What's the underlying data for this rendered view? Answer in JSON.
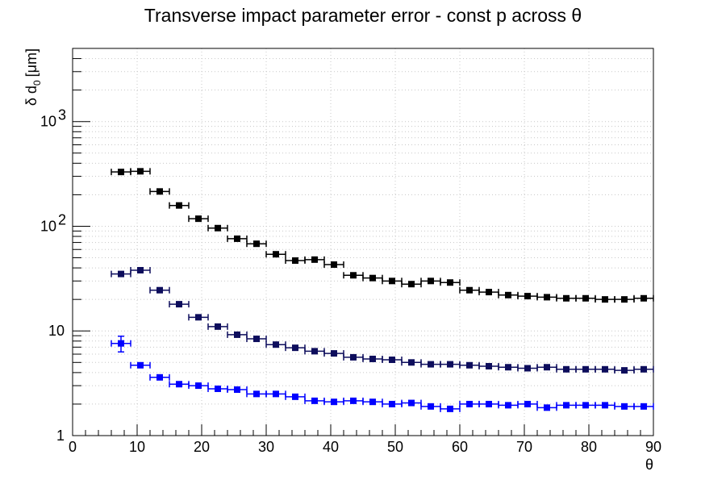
{
  "chart_data": {
    "type": "scatter",
    "title": "Transverse impact parameter error - const p across θ",
    "xlabel": "θ",
    "ylabel_main": "δ d",
    "ylabel_sub": "0",
    "ylabel_unit": "[μm]",
    "xlim": [
      0,
      90
    ],
    "ylim": [
      1,
      5000
    ],
    "yscale": "log",
    "grid": true,
    "x_ticks": [
      "0",
      "10",
      "20",
      "30",
      "40",
      "50",
      "60",
      "70",
      "80",
      "90"
    ],
    "y_ticks": [
      {
        "value": 1,
        "label": "1"
      },
      {
        "value": 10,
        "label": "10"
      },
      {
        "value": 100,
        "label": "10",
        "exp": "2"
      },
      {
        "value": 1000,
        "label": "10",
        "exp": "3"
      }
    ],
    "bin_halfwidth": 1.5,
    "series": [
      {
        "color": "#000000",
        "x": [
          7.5,
          10.5,
          13.5,
          16.5,
          19.5,
          22.5,
          25.5,
          28.5,
          31.5,
          34.5,
          37.5,
          40.5,
          43.5,
          46.5,
          49.5,
          52.5,
          55.5,
          58.5,
          61.5,
          64.5,
          67.5,
          70.5,
          73.5,
          76.5,
          79.5,
          82.5,
          85.5,
          88.5
        ],
        "y": [
          330,
          335,
          215,
          158,
          118,
          96,
          76,
          68,
          54,
          47,
          48,
          43,
          34,
          32,
          30,
          28,
          30,
          29,
          24.5,
          23.5,
          22,
          21.5,
          21,
          20.5,
          20.5,
          20,
          20,
          20.5
        ]
      },
      {
        "color": "#0d0d5c",
        "x": [
          7.5,
          10.5,
          13.5,
          16.5,
          19.5,
          22.5,
          25.5,
          28.5,
          31.5,
          34.5,
          37.5,
          40.5,
          43.5,
          46.5,
          49.5,
          52.5,
          55.5,
          58.5,
          61.5,
          64.5,
          67.5,
          70.5,
          73.5,
          76.5,
          79.5,
          82.5,
          85.5,
          88.5
        ],
        "y": [
          35,
          38,
          24.5,
          18,
          13.5,
          11,
          9.2,
          8.4,
          7.4,
          6.9,
          6.4,
          6.1,
          5.6,
          5.4,
          5.3,
          5.0,
          4.8,
          4.8,
          4.7,
          4.6,
          4.5,
          4.4,
          4.5,
          4.3,
          4.3,
          4.3,
          4.2,
          4.3
        ]
      },
      {
        "color": "#0000ff",
        "x": [
          7.5,
          10.5,
          13.5,
          16.5,
          19.5,
          22.5,
          25.5,
          28.5,
          31.5,
          34.5,
          37.5,
          40.5,
          43.5,
          46.5,
          49.5,
          52.5,
          55.5,
          58.5,
          61.5,
          64.5,
          67.5,
          70.5,
          73.5,
          76.5,
          79.5,
          82.5,
          85.5,
          88.5
        ],
        "y": [
          7.6,
          4.7,
          3.6,
          3.1,
          3.0,
          2.8,
          2.75,
          2.5,
          2.5,
          2.35,
          2.15,
          2.1,
          2.15,
          2.1,
          2.0,
          2.05,
          1.9,
          1.8,
          2.0,
          2.0,
          1.95,
          2.0,
          1.85,
          1.95,
          1.95,
          1.95,
          1.9,
          1.9
        ],
        "yerr": [
          1.3,
          0.2,
          0.15,
          0.1,
          0.1,
          0.1,
          0.1,
          0.08,
          0.08,
          0.08,
          0.07,
          0.07,
          0.07,
          0.07,
          0.06,
          0.06,
          0.06,
          0.06,
          0.06,
          0.06,
          0.06,
          0.06,
          0.06,
          0.06,
          0.06,
          0.06,
          0.06,
          0.06
        ]
      }
    ]
  }
}
